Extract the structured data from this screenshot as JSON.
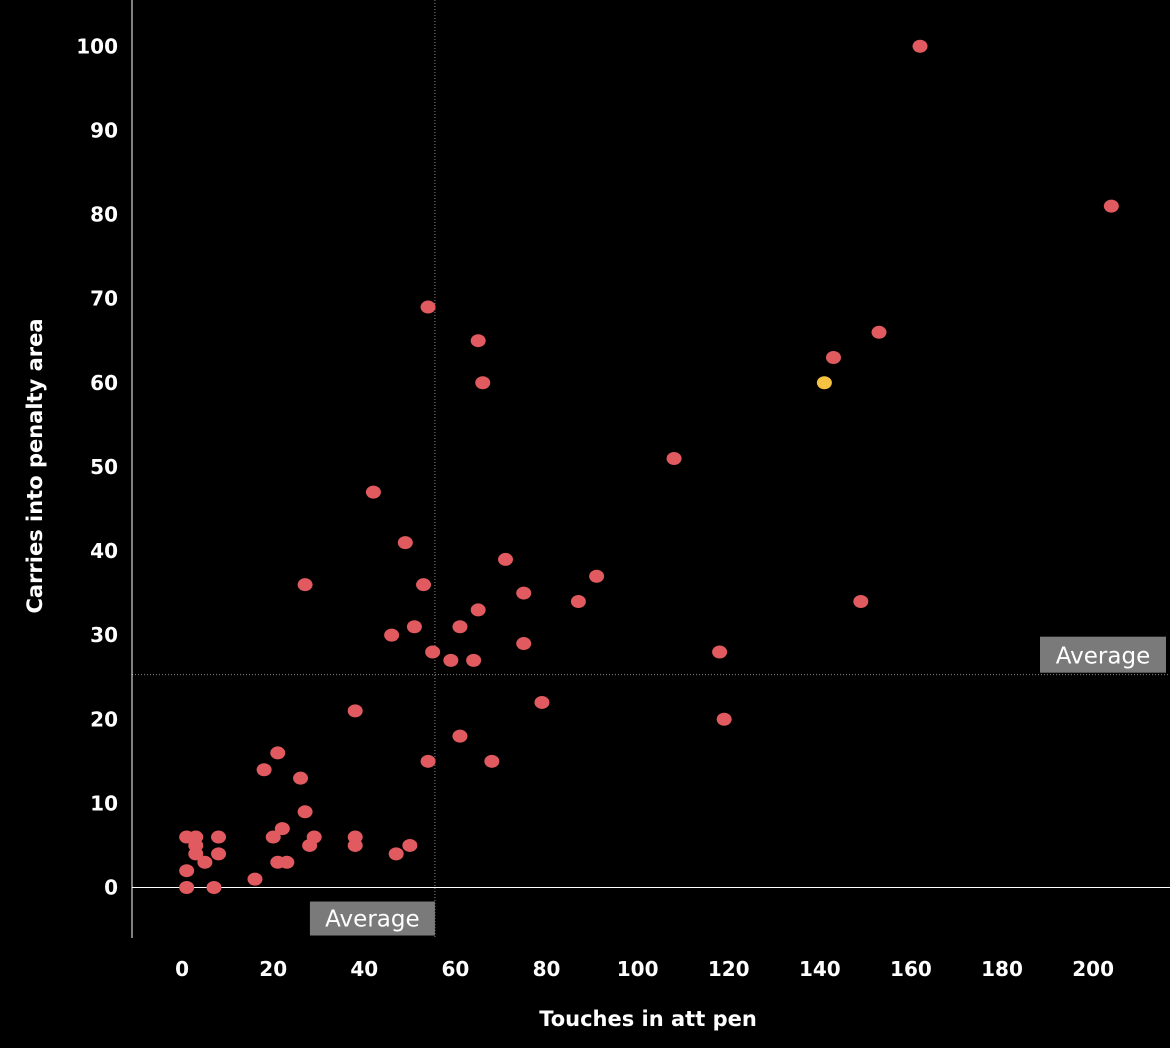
{
  "chart_data": {
    "type": "scatter",
    "title": "",
    "xlabel": "Touches in att pen",
    "ylabel": "Carries into penalty area",
    "xlim": [
      -11,
      216
    ],
    "ylim": [
      -6,
      105.5
    ],
    "xticks": [
      0,
      20,
      40,
      60,
      80,
      100,
      120,
      140,
      160,
      180,
      200
    ],
    "yticks": [
      0,
      10,
      20,
      30,
      40,
      50,
      60,
      70,
      80,
      90,
      100
    ],
    "grid": false,
    "colors": {
      "point": "#e05a5f",
      "highlight": "#f5c242",
      "reference_line": "#888888",
      "zero_line": "#ffffff",
      "avg_label_bg": "#7a7a7a"
    },
    "reference_lines": [
      {
        "axis": "x",
        "value": 55.5,
        "label": "Average"
      },
      {
        "axis": "y",
        "value": 25.3,
        "label": "Average"
      }
    ],
    "points": [
      {
        "x": 162,
        "y": 100
      },
      {
        "x": 204,
        "y": 81
      },
      {
        "x": 153,
        "y": 66
      },
      {
        "x": 143,
        "y": 63
      },
      {
        "x": 141,
        "y": 60,
        "highlight": true
      },
      {
        "x": 108,
        "y": 51
      },
      {
        "x": 149,
        "y": 34
      },
      {
        "x": 118,
        "y": 28
      },
      {
        "x": 119,
        "y": 20
      },
      {
        "x": 54,
        "y": 69
      },
      {
        "x": 65,
        "y": 65
      },
      {
        "x": 66,
        "y": 60
      },
      {
        "x": 42,
        "y": 47
      },
      {
        "x": 49,
        "y": 41
      },
      {
        "x": 71,
        "y": 39
      },
      {
        "x": 91,
        "y": 37
      },
      {
        "x": 27,
        "y": 36
      },
      {
        "x": 53,
        "y": 36
      },
      {
        "x": 75,
        "y": 35
      },
      {
        "x": 87,
        "y": 34
      },
      {
        "x": 65,
        "y": 33
      },
      {
        "x": 51,
        "y": 31
      },
      {
        "x": 61,
        "y": 31
      },
      {
        "x": 46,
        "y": 30
      },
      {
        "x": 75,
        "y": 29
      },
      {
        "x": 55,
        "y": 28
      },
      {
        "x": 59,
        "y": 27
      },
      {
        "x": 64,
        "y": 27
      },
      {
        "x": 79,
        "y": 22
      },
      {
        "x": 38,
        "y": 21
      },
      {
        "x": 61,
        "y": 18
      },
      {
        "x": 21,
        "y": 16
      },
      {
        "x": 54,
        "y": 15
      },
      {
        "x": 68,
        "y": 15
      },
      {
        "x": 18,
        "y": 14
      },
      {
        "x": 26,
        "y": 13
      },
      {
        "x": 27,
        "y": 9
      },
      {
        "x": 22,
        "y": 7
      },
      {
        "x": 1,
        "y": 6
      },
      {
        "x": 3,
        "y": 6
      },
      {
        "x": 8,
        "y": 6
      },
      {
        "x": 20,
        "y": 6
      },
      {
        "x": 29,
        "y": 6
      },
      {
        "x": 38,
        "y": 6
      },
      {
        "x": 3,
        "y": 5
      },
      {
        "x": 28,
        "y": 5
      },
      {
        "x": 38,
        "y": 5
      },
      {
        "x": 50,
        "y": 5
      },
      {
        "x": 3,
        "y": 4
      },
      {
        "x": 8,
        "y": 4
      },
      {
        "x": 47,
        "y": 4
      },
      {
        "x": 5,
        "y": 3
      },
      {
        "x": 21,
        "y": 3
      },
      {
        "x": 23,
        "y": 3
      },
      {
        "x": 1,
        "y": 2
      },
      {
        "x": 16,
        "y": 1
      },
      {
        "x": 1,
        "y": 0
      },
      {
        "x": 7,
        "y": 0
      }
    ]
  }
}
